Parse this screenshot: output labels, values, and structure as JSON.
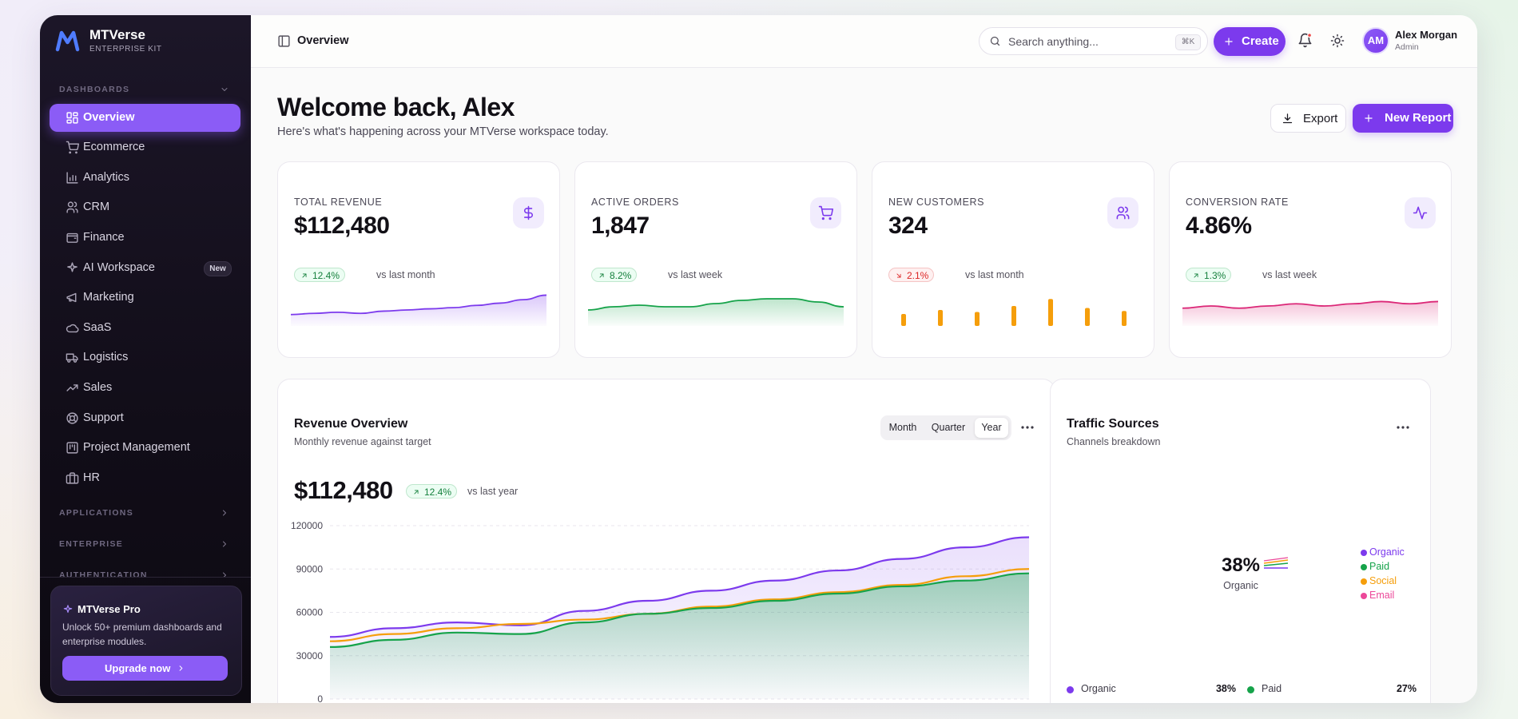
{
  "sidebar": {
    "brand": "MTVerse",
    "brand_sub": "ENTERPRISE KIT",
    "dashboards_label": "DASHBOARDS",
    "nav": [
      {
        "label": "Overview",
        "active": true
      },
      {
        "label": "Ecommerce"
      },
      {
        "label": "Analytics"
      },
      {
        "label": "CRM"
      },
      {
        "label": "Finance"
      },
      {
        "label": "AI Workspace",
        "badge": "New"
      },
      {
        "label": "Marketing"
      },
      {
        "label": "SaaS"
      },
      {
        "label": "Logistics"
      },
      {
        "label": "Sales"
      },
      {
        "label": "Support"
      },
      {
        "label": "Project Management"
      },
      {
        "label": "HR"
      }
    ],
    "sections": [
      "APPLICATIONS",
      "ENTERPRISE",
      "AUTHENTICATION"
    ],
    "promo": {
      "title": "MTVerse Pro",
      "text": "Unlock 50+ premium dashboards and enterprise modules.",
      "button": "Upgrade now"
    }
  },
  "topbar": {
    "page": "Overview",
    "search_placeholder": "Search anything...",
    "shortcut": "⌘K",
    "create": "Create",
    "user": {
      "initials": "AM",
      "name": "Alex Morgan",
      "role": "Admin"
    }
  },
  "header": {
    "title": "Welcome back, Alex",
    "subtitle": "Here's what's happening across your MTVerse workspace today.",
    "export": "Export",
    "new_report": "New Report"
  },
  "kpis": [
    {
      "label": "TOTAL REVENUE",
      "value": "$112,480",
      "change": "12.4%",
      "trend": "up",
      "comparison": "vs last month",
      "spark": {
        "type": "area",
        "color": "#7c3aed",
        "ylim": [
          20,
          55
        ],
        "values": [
          30,
          31,
          32,
          31,
          33,
          34,
          35,
          36,
          38,
          40,
          43,
          47
        ]
      }
    },
    {
      "label": "ACTIVE ORDERS",
      "value": "1,847",
      "change": "8.2%",
      "trend": "up",
      "comparison": "vs last week",
      "spark": {
        "type": "area",
        "color": "#16a34a",
        "ylim": [
          20,
          45
        ],
        "values": [
          30,
          32,
          33,
          32,
          32,
          34,
          36,
          37,
          37,
          35,
          32
        ]
      }
    },
    {
      "label": "NEW CUSTOMERS",
      "value": "324",
      "change": "2.1%",
      "trend": "down",
      "comparison": "vs last month",
      "spark": {
        "type": "bar",
        "color": "#f59e0b",
        "ylim": [
          0,
          40
        ],
        "values": [
          12,
          16,
          14,
          20,
          27,
          18,
          15
        ]
      }
    },
    {
      "label": "CONVERSION RATE",
      "value": "4.86%",
      "change": "1.3%",
      "trend": "up",
      "comparison": "vs last week",
      "spark": {
        "type": "area",
        "color": "#db2777",
        "ylim": [
          22,
          40
        ],
        "values": [
          30,
          31,
          30,
          31,
          32,
          31,
          32,
          33,
          32,
          33
        ]
      }
    }
  ],
  "chart_data": {
    "type": "line",
    "title": "Revenue Overview",
    "subtitle": "Monthly revenue against target",
    "tabs": [
      {
        "label": "Month"
      },
      {
        "label": "Quarter"
      },
      {
        "label": "Year",
        "active": true
      }
    ],
    "value": "$112,480",
    "change": "12.4%",
    "trend": "up",
    "comparison": "vs last year",
    "ylim": [
      0,
      120000
    ],
    "yticks": [
      0,
      30000,
      60000,
      90000,
      120000
    ],
    "grid": true,
    "series": [
      {
        "color": "#7c3aed",
        "area": true,
        "values": [
          43000,
          49000,
          53000,
          51000,
          61000,
          68000,
          75000,
          82000,
          89000,
          97000,
          105000,
          112000
        ]
      },
      {
        "color": "#f59e0b",
        "values": [
          40000,
          45000,
          49000,
          52000,
          55000,
          59000,
          64000,
          69000,
          74000,
          79000,
          85000,
          90000
        ]
      },
      {
        "color": "#16a34a",
        "area": true,
        "values": [
          36000,
          41000,
          46000,
          45000,
          53000,
          59000,
          63000,
          68000,
          73000,
          78000,
          82000,
          87000
        ]
      }
    ]
  },
  "traffic": {
    "title": "Traffic Sources",
    "subtitle": "Channels breakdown",
    "center_value": "38%",
    "center_label": "Organic",
    "legend": [
      {
        "name": "Organic",
        "color": "#7c3aed"
      },
      {
        "name": "Paid",
        "color": "#16a34a"
      },
      {
        "name": "Social",
        "color": "#f59e0b"
      },
      {
        "name": "Email",
        "color": "#ec4899"
      }
    ],
    "breakdown": [
      {
        "name": "Organic",
        "value": "38%",
        "color": "#7c3aed"
      },
      {
        "name": "Paid",
        "value": "27%",
        "color": "#16a34a"
      }
    ]
  }
}
